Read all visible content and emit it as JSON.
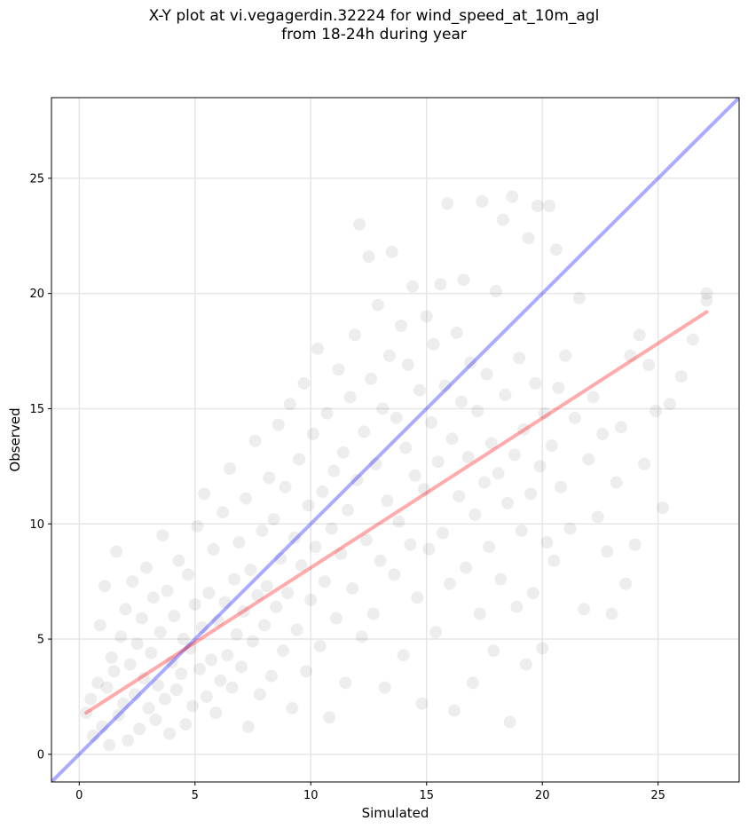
{
  "chart_data": {
    "type": "scatter",
    "title_line1": "X-Y plot at vi.vegagerdin.32224 for wind_speed_at_10m_agl",
    "title_line2": "from 18-24h during year",
    "xlabel": "Simulated",
    "ylabel": "Observed",
    "xlim": [
      -1.2,
      28.5
    ],
    "ylim": [
      -1.2,
      28.5
    ],
    "xticks": [
      0,
      5,
      10,
      15,
      20,
      25
    ],
    "yticks": [
      0,
      5,
      10,
      15,
      20,
      25
    ],
    "grid": true,
    "colors": {
      "points": "#000000",
      "identity_line": "#0000ff",
      "fit_line": "#ff0000",
      "grid": "#e6e6e6"
    },
    "lines": [
      {
        "kind": "identity",
        "x": [
          -1.2,
          28.5
        ],
        "y": [
          -1.2,
          28.5
        ]
      },
      {
        "kind": "regression",
        "x": [
          0.3,
          27.1
        ],
        "y": [
          1.8,
          19.2
        ]
      }
    ],
    "points": [
      [
        0.3,
        1.8
      ],
      [
        0.5,
        2.4
      ],
      [
        0.6,
        0.8
      ],
      [
        0.8,
        3.1
      ],
      [
        0.9,
        5.6
      ],
      [
        1.0,
        1.2
      ],
      [
        1.1,
        7.3
      ],
      [
        1.2,
        2.9
      ],
      [
        1.3,
        0.4
      ],
      [
        1.4,
        4.2
      ],
      [
        1.5,
        3.6
      ],
      [
        1.6,
        8.8
      ],
      [
        1.7,
        1.7
      ],
      [
        1.8,
        5.1
      ],
      [
        1.9,
        2.2
      ],
      [
        2.0,
        6.3
      ],
      [
        2.1,
        0.6
      ],
      [
        2.2,
        3.9
      ],
      [
        2.3,
        7.5
      ],
      [
        2.4,
        2.6
      ],
      [
        2.5,
        4.8
      ],
      [
        2.6,
        1.1
      ],
      [
        2.7,
        5.9
      ],
      [
        2.8,
        3.3
      ],
      [
        2.9,
        8.1
      ],
      [
        3.0,
        2.0
      ],
      [
        3.1,
        4.4
      ],
      [
        3.2,
        6.8
      ],
      [
        3.3,
        1.5
      ],
      [
        3.4,
        3.0
      ],
      [
        3.5,
        5.3
      ],
      [
        3.6,
        9.5
      ],
      [
        3.7,
        2.4
      ],
      [
        3.8,
        7.1
      ],
      [
        3.9,
        0.9
      ],
      [
        4.0,
        4.0
      ],
      [
        4.1,
        6.0
      ],
      [
        4.2,
        2.8
      ],
      [
        4.3,
        8.4
      ],
      [
        4.4,
        3.5
      ],
      [
        4.5,
        5.0
      ],
      [
        4.6,
        1.3
      ],
      [
        4.7,
        7.8
      ],
      [
        4.8,
        4.6
      ],
      [
        4.9,
        2.1
      ],
      [
        5.0,
        6.5
      ],
      [
        5.1,
        9.9
      ],
      [
        5.2,
        3.7
      ],
      [
        5.3,
        5.5
      ],
      [
        5.4,
        11.3
      ],
      [
        5.5,
        2.5
      ],
      [
        5.6,
        7.0
      ],
      [
        5.7,
        4.1
      ],
      [
        5.8,
        8.9
      ],
      [
        5.9,
        1.8
      ],
      [
        6.0,
        5.8
      ],
      [
        6.1,
        3.2
      ],
      [
        6.2,
        10.5
      ],
      [
        6.3,
        6.6
      ],
      [
        6.4,
        4.3
      ],
      [
        6.5,
        12.4
      ],
      [
        6.6,
        2.9
      ],
      [
        6.7,
        7.6
      ],
      [
        6.8,
        5.2
      ],
      [
        6.9,
        9.2
      ],
      [
        7.0,
        3.8
      ],
      [
        7.1,
        6.2
      ],
      [
        7.2,
        11.1
      ],
      [
        7.3,
        1.2
      ],
      [
        7.4,
        8.0
      ],
      [
        7.5,
        4.9
      ],
      [
        7.6,
        13.6
      ],
      [
        7.7,
        6.9
      ],
      [
        7.8,
        2.6
      ],
      [
        7.9,
        9.7
      ],
      [
        8.0,
        5.6
      ],
      [
        8.1,
        7.3
      ],
      [
        8.2,
        12.0
      ],
      [
        8.3,
        3.4
      ],
      [
        8.4,
        10.2
      ],
      [
        8.5,
        6.4
      ],
      [
        8.6,
        14.3
      ],
      [
        8.7,
        8.5
      ],
      [
        8.8,
        4.5
      ],
      [
        8.9,
        11.6
      ],
      [
        9.0,
        7.0
      ],
      [
        9.1,
        15.2
      ],
      [
        9.2,
        2.0
      ],
      [
        9.3,
        9.4
      ],
      [
        9.4,
        5.4
      ],
      [
        9.5,
        12.8
      ],
      [
        9.6,
        8.2
      ],
      [
        9.7,
        16.1
      ],
      [
        9.8,
        3.6
      ],
      [
        9.9,
        10.8
      ],
      [
        10.0,
        6.7
      ],
      [
        10.1,
        13.9
      ],
      [
        10.2,
        9.0
      ],
      [
        10.3,
        17.6
      ],
      [
        10.4,
        4.7
      ],
      [
        10.5,
        11.4
      ],
      [
        10.6,
        7.5
      ],
      [
        10.7,
        14.8
      ],
      [
        10.8,
        1.6
      ],
      [
        10.9,
        9.8
      ],
      [
        11.0,
        12.3
      ],
      [
        11.1,
        5.9
      ],
      [
        11.2,
        16.7
      ],
      [
        11.3,
        8.7
      ],
      [
        11.4,
        13.1
      ],
      [
        11.5,
        3.1
      ],
      [
        11.6,
        10.6
      ],
      [
        11.7,
        15.5
      ],
      [
        11.8,
        7.2
      ],
      [
        11.9,
        18.2
      ],
      [
        12.0,
        11.9
      ],
      [
        12.1,
        23.0
      ],
      [
        12.2,
        5.1
      ],
      [
        12.3,
        14.0
      ],
      [
        12.4,
        9.3
      ],
      [
        12.5,
        21.6
      ],
      [
        12.6,
        16.3
      ],
      [
        12.7,
        6.1
      ],
      [
        12.8,
        12.6
      ],
      [
        12.9,
        19.5
      ],
      [
        13.0,
        8.4
      ],
      [
        13.1,
        15.0
      ],
      [
        13.2,
        2.9
      ],
      [
        13.3,
        11.0
      ],
      [
        13.4,
        17.3
      ],
      [
        13.5,
        21.8
      ],
      [
        13.6,
        7.8
      ],
      [
        13.7,
        14.6
      ],
      [
        13.8,
        10.1
      ],
      [
        13.9,
        18.6
      ],
      [
        14.0,
        4.3
      ],
      [
        14.1,
        13.3
      ],
      [
        14.2,
        16.9
      ],
      [
        14.3,
        9.1
      ],
      [
        14.4,
        20.3
      ],
      [
        14.5,
        12.1
      ],
      [
        14.6,
        6.8
      ],
      [
        14.7,
        15.8
      ],
      [
        14.8,
        2.2
      ],
      [
        14.9,
        11.5
      ],
      [
        15.0,
        19.0
      ],
      [
        15.1,
        8.9
      ],
      [
        15.2,
        14.4
      ],
      [
        15.3,
        17.8
      ],
      [
        15.4,
        5.3
      ],
      [
        15.5,
        12.7
      ],
      [
        15.6,
        20.4
      ],
      [
        15.7,
        9.6
      ],
      [
        15.8,
        16.0
      ],
      [
        15.9,
        23.9
      ],
      [
        16.0,
        7.4
      ],
      [
        16.1,
        13.7
      ],
      [
        16.2,
        1.9
      ],
      [
        16.3,
        18.3
      ],
      [
        16.4,
        11.2
      ],
      [
        16.5,
        15.3
      ],
      [
        16.6,
        20.6
      ],
      [
        16.7,
        8.1
      ],
      [
        16.8,
        12.9
      ],
      [
        16.9,
        17.0
      ],
      [
        17.0,
        3.1
      ],
      [
        17.1,
        10.4
      ],
      [
        17.2,
        14.9
      ],
      [
        17.3,
        6.1
      ],
      [
        17.4,
        24.0
      ],
      [
        17.5,
        11.8
      ],
      [
        17.6,
        16.5
      ],
      [
        17.7,
        9.0
      ],
      [
        17.8,
        13.5
      ],
      [
        17.9,
        4.5
      ],
      [
        18.0,
        20.1
      ],
      [
        18.1,
        12.2
      ],
      [
        18.2,
        7.6
      ],
      [
        18.3,
        23.2
      ],
      [
        18.4,
        15.6
      ],
      [
        18.5,
        10.9
      ],
      [
        18.6,
        1.4
      ],
      [
        18.7,
        24.2
      ],
      [
        18.8,
        13.0
      ],
      [
        18.9,
        6.4
      ],
      [
        19.0,
        17.2
      ],
      [
        19.1,
        9.7
      ],
      [
        19.2,
        14.1
      ],
      [
        19.3,
        3.9
      ],
      [
        19.4,
        22.4
      ],
      [
        19.5,
        11.3
      ],
      [
        19.6,
        7.0
      ],
      [
        19.7,
        16.1
      ],
      [
        19.8,
        23.8
      ],
      [
        19.9,
        12.5
      ],
      [
        20.0,
        4.6
      ],
      [
        20.1,
        14.8
      ],
      [
        20.2,
        9.2
      ],
      [
        20.3,
        23.8
      ],
      [
        20.4,
        13.4
      ],
      [
        20.5,
        8.4
      ],
      [
        20.6,
        21.9
      ],
      [
        20.7,
        15.9
      ],
      [
        20.8,
        11.6
      ],
      [
        21.0,
        17.3
      ],
      [
        21.2,
        9.8
      ],
      [
        21.4,
        14.6
      ],
      [
        21.6,
        19.8
      ],
      [
        21.8,
        6.3
      ],
      [
        22.0,
        12.8
      ],
      [
        22.2,
        15.5
      ],
      [
        22.4,
        10.3
      ],
      [
        22.6,
        13.9
      ],
      [
        22.8,
        8.8
      ],
      [
        23.0,
        6.1
      ],
      [
        23.2,
        11.8
      ],
      [
        23.4,
        14.2
      ],
      [
        23.6,
        7.4
      ],
      [
        23.8,
        17.3
      ],
      [
        24.0,
        9.1
      ],
      [
        24.2,
        18.2
      ],
      [
        24.4,
        12.6
      ],
      [
        24.6,
        16.9
      ],
      [
        24.9,
        14.9
      ],
      [
        25.5,
        15.2
      ],
      [
        26.0,
        16.4
      ],
      [
        27.1,
        20.0
      ],
      [
        27.1,
        19.7
      ],
      [
        26.5,
        18.0
      ],
      [
        25.2,
        10.7
      ]
    ]
  }
}
